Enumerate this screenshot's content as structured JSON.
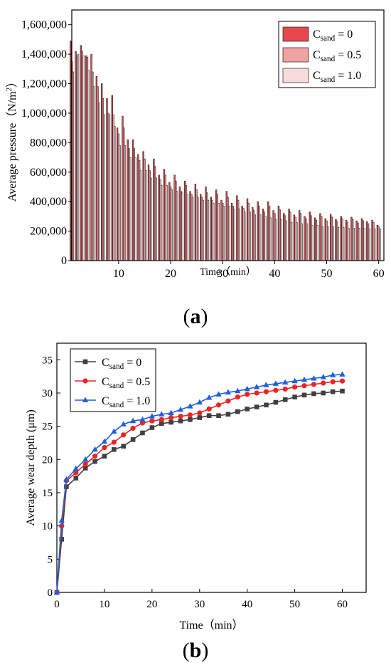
{
  "panels": {
    "a": {
      "open": "(",
      "letter": "a",
      "close": ")"
    },
    "b": {
      "open": "(",
      "letter": "b",
      "close": ")"
    }
  },
  "chart_data": [
    {
      "type": "bar",
      "panel": "a",
      "title": "",
      "xlabel": "Time（min）",
      "ylabel": "Average pressure（N/m²）",
      "ylabel_parts": {
        "main": "Average pressure（N/m",
        "sup": "2",
        "end": "）"
      },
      "xlim": [
        1,
        61
      ],
      "ylim": [
        0,
        1700000
      ],
      "xticks": [
        10,
        20,
        30,
        40,
        50,
        60
      ],
      "yticks": [
        0,
        200000,
        400000,
        600000,
        800000,
        1000000,
        1200000,
        1400000,
        1600000
      ],
      "ytick_labels": [
        "0",
        "200,000",
        "400,000",
        "600,000",
        "800,000",
        "1,000,000",
        "1,200,000",
        "1,400,000",
        "1,600,000"
      ],
      "legend_position": "top-right",
      "x": [
        1,
        2,
        3,
        4,
        5,
        6,
        7,
        8,
        9,
        10,
        11,
        12,
        13,
        14,
        15,
        16,
        17,
        18,
        19,
        20,
        21,
        22,
        23,
        24,
        25,
        26,
        27,
        28,
        29,
        30,
        31,
        32,
        33,
        34,
        35,
        36,
        37,
        38,
        39,
        40,
        41,
        42,
        43,
        44,
        45,
        46,
        47,
        48,
        49,
        50,
        51,
        52,
        53,
        54,
        55,
        56,
        57,
        58,
        59,
        60
      ],
      "series": [
        {
          "name": "C_sand = 0",
          "label_parts": {
            "base": "C",
            "sub": "sand",
            "rest": " = 0"
          },
          "color": "#e8484c",
          "values": [
            1490000,
            1420000,
            1460000,
            1390000,
            1400000,
            1250000,
            1200000,
            1100000,
            1120000,
            900000,
            980000,
            820000,
            820000,
            720000,
            740000,
            650000,
            690000,
            580000,
            620000,
            530000,
            580000,
            500000,
            540000,
            470000,
            520000,
            450000,
            500000,
            430000,
            480000,
            410000,
            470000,
            390000,
            440000,
            370000,
            420000,
            360000,
            400000,
            350000,
            400000,
            340000,
            370000,
            320000,
            350000,
            310000,
            340000,
            300000,
            330000,
            290000,
            320000,
            285000,
            315000,
            280000,
            300000,
            275000,
            295000,
            270000,
            285000,
            265000,
            275000,
            240000
          ]
        },
        {
          "name": "C_sand = 0.5",
          "label_parts": {
            "base": "C",
            "sub": "sand",
            "rest": " = 0.5"
          },
          "color": "#f0a1a1",
          "values": [
            1350000,
            1390000,
            1420000,
            1380000,
            1280000,
            1180000,
            1100000,
            1000000,
            990000,
            860000,
            900000,
            760000,
            760000,
            680000,
            690000,
            610000,
            640000,
            550000,
            580000,
            500000,
            540000,
            470000,
            510000,
            450000,
            480000,
            430000,
            460000,
            410000,
            450000,
            390000,
            430000,
            370000,
            410000,
            355000,
            390000,
            340000,
            370000,
            330000,
            370000,
            320000,
            345000,
            305000,
            330000,
            295000,
            320000,
            285000,
            305000,
            275000,
            300000,
            270000,
            295000,
            265000,
            285000,
            260000,
            280000,
            255000,
            270000,
            250000,
            260000,
            230000
          ]
        },
        {
          "name": "C_sand = 1.0",
          "label_parts": {
            "base": "C",
            "sub": "sand",
            "rest": " = 1.0"
          },
          "color": "#f8dcdc",
          "values": [
            1280000,
            1400000,
            1390000,
            1290000,
            1180000,
            1070000,
            990000,
            990000,
            910000,
            780000,
            780000,
            700000,
            700000,
            610000,
            610000,
            560000,
            560000,
            510000,
            510000,
            480000,
            470000,
            460000,
            450000,
            430000,
            430000,
            410000,
            410000,
            390000,
            390000,
            370000,
            370000,
            350000,
            350000,
            330000,
            330000,
            310000,
            310000,
            300000,
            290000,
            280000,
            280000,
            270000,
            260000,
            260000,
            250000,
            250000,
            240000,
            240000,
            230000,
            230000,
            230000,
            225000,
            225000,
            220000,
            220000,
            220000,
            220000,
            215000,
            215000,
            215000
          ]
        }
      ]
    },
    {
      "type": "line",
      "panel": "b",
      "title": "",
      "xlabel": "Time（min）",
      "ylabel": "Average wear depth (μm)",
      "xlim": [
        0,
        65
      ],
      "ylim": [
        0,
        37.5
      ],
      "xticks": [
        0,
        10,
        20,
        30,
        40,
        50,
        60
      ],
      "yticks": [
        0,
        5,
        10,
        15,
        20,
        25,
        30,
        35
      ],
      "legend_position": "top-left",
      "x": [
        0,
        1,
        2,
        4,
        6,
        8,
        10,
        12,
        14,
        16,
        18,
        20,
        22,
        24,
        26,
        28,
        30,
        32,
        34,
        36,
        38,
        40,
        42,
        44,
        46,
        48,
        50,
        52,
        54,
        56,
        58,
        60
      ],
      "series": [
        {
          "name": "C_sand = 0",
          "label_parts": {
            "base": "C",
            "sub": "sand",
            "rest": " = 0"
          },
          "color": "#404040",
          "marker": "square",
          "values": [
            0,
            8.0,
            15.9,
            17.2,
            18.7,
            19.7,
            20.5,
            21.5,
            22.0,
            23.0,
            24.0,
            24.8,
            25.4,
            25.6,
            25.8,
            26.0,
            26.3,
            26.6,
            26.6,
            26.8,
            27.2,
            27.6,
            27.9,
            28.2,
            28.6,
            29.0,
            29.4,
            29.7,
            29.9,
            30.0,
            30.2,
            30.3
          ]
        },
        {
          "name": "C_sand = 0.5",
          "label_parts": {
            "base": "C",
            "sub": "sand",
            "rest": " = 0.5"
          },
          "color": "#ee2424",
          "marker": "circle",
          "values": [
            0,
            10.0,
            16.8,
            18.0,
            19.3,
            20.5,
            21.8,
            22.6,
            23.7,
            24.7,
            25.5,
            25.8,
            26.0,
            26.3,
            26.5,
            26.7,
            27.0,
            27.6,
            28.2,
            28.8,
            29.4,
            29.8,
            30.0,
            30.2,
            30.4,
            30.6,
            30.9,
            31.1,
            31.3,
            31.5,
            31.7,
            31.8
          ]
        },
        {
          "name": "C_sand = 1.0",
          "label_parts": {
            "base": "C",
            "sub": "sand",
            "rest": " = 1.0"
          },
          "color": "#1f5fe0",
          "marker": "triangle",
          "values": [
            0,
            10.8,
            17.0,
            18.6,
            20.0,
            21.5,
            22.7,
            24.2,
            25.3,
            25.8,
            26.0,
            26.5,
            26.8,
            27.0,
            27.5,
            28.0,
            28.6,
            29.3,
            29.8,
            30.1,
            30.3,
            30.6,
            30.9,
            31.2,
            31.4,
            31.6,
            31.8,
            32.0,
            32.2,
            32.4,
            32.7,
            32.8
          ]
        }
      ]
    }
  ]
}
